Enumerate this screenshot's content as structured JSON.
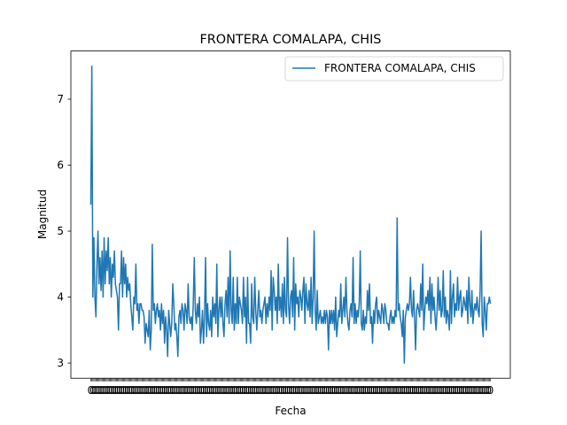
{
  "chart_data": {
    "type": "line",
    "title": "FRONTERA COMALAPA, CHIS",
    "xlabel": "Fecha",
    "ylabel": "Magnitud",
    "yticks": [
      3,
      4,
      5,
      6,
      7
    ],
    "ylim": [
      2.77,
      7.73
    ],
    "grid": false,
    "legend_position": "top-right",
    "x_tick_labels": "crowded, illegible date labels",
    "series": [
      {
        "name": "FRONTERA COMALAPA, CHIS",
        "color": "#1f77b4",
        "values": [
          5.4,
          7.5,
          4.0,
          4.9,
          4.0,
          3.7,
          4.5,
          5.0,
          4.2,
          4.6,
          4.1,
          4.7,
          4.0,
          4.9,
          4.2,
          4.7,
          4.4,
          4.9,
          4.2,
          4.6,
          4.0,
          4.5,
          4.3,
          4.7,
          4.2,
          4.1,
          4.0,
          3.5,
          4.2,
          4.2,
          4.7,
          4.0,
          4.6,
          4.2,
          4.5,
          4.0,
          4.3,
          4.1,
          4.2,
          3.9,
          3.7,
          3.5,
          4.0,
          3.9,
          4.5,
          3.8,
          3.9,
          3.6,
          3.9,
          3.9,
          3.8,
          3.8,
          3.7,
          3.3,
          3.6,
          3.5,
          3.4,
          3.8,
          3.2,
          3.5,
          4.8,
          3.8,
          3.9,
          3.6,
          3.8,
          3.9,
          3.7,
          3.8,
          3.5,
          3.9,
          3.6,
          3.8,
          3.3,
          3.7,
          3.5,
          3.1,
          3.8,
          3.6,
          3.4,
          3.6,
          4.2,
          3.9,
          3.5,
          3.6,
          3.4,
          3.1,
          3.7,
          3.8,
          3.6,
          3.9,
          3.8,
          3.5,
          3.9,
          3.8,
          3.6,
          4.2,
          3.7,
          3.6,
          3.7,
          3.5,
          3.9,
          4.6,
          3.8,
          3.6,
          3.9,
          3.7,
          4.0,
          3.3,
          3.5,
          3.8,
          3.3,
          3.7,
          4.6,
          3.4,
          3.9,
          3.6,
          3.5,
          3.8,
          3.4,
          4.0,
          3.7,
          3.9,
          3.6,
          4.5,
          3.4,
          3.8,
          4.0,
          3.7,
          4.0,
          3.6,
          3.4,
          3.9,
          4.1,
          3.7,
          4.3,
          3.6,
          4.7,
          3.8,
          3.6,
          4.3,
          3.5,
          3.9,
          3.6,
          4.3,
          3.6,
          4.0,
          3.9,
          3.8,
          3.6,
          4.3,
          3.7,
          4.0,
          3.3,
          4.3,
          3.6,
          3.6,
          3.3,
          4.2,
          3.7,
          3.6,
          4.3,
          3.8,
          3.5,
          3.8,
          4.1,
          3.7,
          3.8,
          3.6,
          3.8,
          3.9,
          4.0,
          3.6,
          3.9,
          3.7,
          4.0,
          3.8,
          4.4,
          3.5,
          4.3,
          4.1,
          3.8,
          4.0,
          3.6,
          4.5,
          3.8,
          4.0,
          3.7,
          4.2,
          3.6,
          4.3,
          3.8,
          3.7,
          4.9,
          3.9,
          3.6,
          4.0,
          4.1,
          3.7,
          4.6,
          3.5,
          4.2,
          3.9,
          4.0,
          3.7,
          4.1,
          4.0,
          3.8,
          4.1,
          4.3,
          3.6,
          4.2,
          3.9,
          3.8,
          4.1,
          3.7,
          4.3,
          3.6,
          4.0,
          5.0,
          3.8,
          3.5,
          4.1,
          3.6,
          3.7,
          3.8,
          3.6,
          3.7,
          3.6,
          3.8,
          3.6,
          3.8,
          3.7,
          3.2,
          3.8,
          3.6,
          3.8,
          3.6,
          3.8,
          3.5,
          4.0,
          3.4,
          3.6,
          3.8,
          3.7,
          4.2,
          3.6,
          3.8,
          4.0,
          3.7,
          4.3,
          3.8,
          3.6,
          3.5,
          3.8,
          3.9,
          3.7,
          4.6,
          3.6,
          3.9,
          3.6,
          3.8,
          3.7,
          3.9,
          4.7,
          3.6,
          3.5,
          3.8,
          3.5,
          3.7,
          3.6,
          4.1,
          3.8,
          4.2,
          3.6,
          3.7,
          3.3,
          3.8,
          3.6,
          3.9,
          4.0,
          3.6,
          3.8,
          3.7,
          3.6,
          3.9,
          3.8,
          3.6,
          3.9,
          3.8,
          3.6,
          3.6,
          3.5,
          3.7,
          3.8,
          3.6,
          3.7,
          3.6,
          3.8,
          3.7,
          5.2,
          3.8,
          3.9,
          3.7,
          3.6,
          3.4,
          3.8,
          3.0,
          3.7,
          3.8,
          3.9,
          3.8,
          3.9,
          4.3,
          3.8,
          3.7,
          4.1,
          3.7,
          3.2,
          3.8,
          3.9,
          3.8,
          3.7,
          4.2,
          3.8,
          4.5,
          3.5,
          3.8,
          4.0,
          3.9,
          4.1,
          3.8,
          4.3,
          3.6,
          4.2,
          3.8,
          4.0,
          3.7,
          3.5,
          3.8,
          4.3,
          3.8,
          4.1,
          3.7,
          3.8,
          4.4,
          3.7,
          4.0,
          3.6,
          3.8,
          3.7,
          3.5,
          4.4,
          3.6,
          4.0,
          4.2,
          3.7,
          3.9,
          3.8,
          4.3,
          3.8,
          4.0,
          4.1,
          3.7,
          3.8,
          4.0,
          3.9,
          3.8,
          4.1,
          3.6,
          4.3,
          3.9,
          3.7,
          4.1,
          3.6,
          3.8,
          3.9,
          3.8,
          4.0,
          3.8,
          3.7,
          4.1,
          5.0,
          3.6,
          3.4,
          4.0,
          3.8,
          3.5,
          3.9,
          3.9,
          4.0,
          3.9
        ]
      }
    ]
  }
}
